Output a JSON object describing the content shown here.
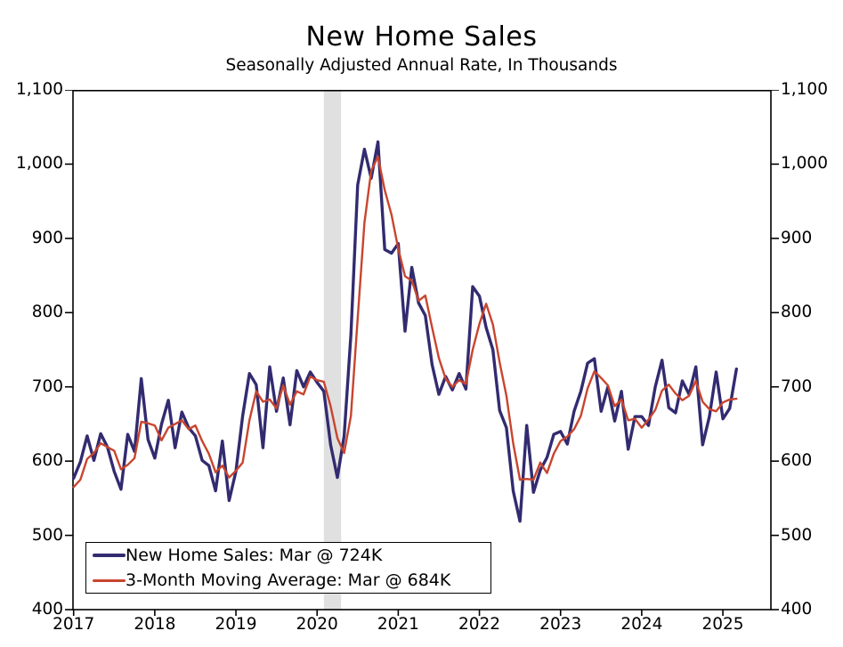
{
  "title": "New Home Sales",
  "subtitle": "Seasonally Adjusted Annual Rate, In Thousands",
  "legend": [
    {
      "label": "New Home Sales: Mar @ 724K",
      "color": "#322b70"
    },
    {
      "label": "3-Month Moving Average: Mar @ 684K",
      "color": "#c8452e"
    }
  ],
  "chart_data": {
    "type": "line",
    "title": "New Home Sales",
    "subtitle": "Seasonally Adjusted Annual Rate, In Thousands",
    "xlabel": "",
    "ylabel": "",
    "x_start_month": "2017-01",
    "x_end_month": "2025-03",
    "ylim": [
      400,
      1100
    ],
    "grid": false,
    "legend_position": "bottom-left",
    "background_color": "#ffffff",
    "frame_color": "#000000",
    "y_ticks": [
      {
        "value": 400,
        "label": "400"
      },
      {
        "value": 500,
        "label": "500"
      },
      {
        "value": 600,
        "label": "600"
      },
      {
        "value": 700,
        "label": "700"
      },
      {
        "value": 800,
        "label": "800"
      },
      {
        "value": 900,
        "label": "900"
      },
      {
        "value": 1000,
        "label": "1,000"
      },
      {
        "value": 1100,
        "label": "1,100"
      }
    ],
    "x_ticks": [
      {
        "label": "2017",
        "month_index": 0
      },
      {
        "label": "2018",
        "month_index": 12
      },
      {
        "label": "2019",
        "month_index": 24
      },
      {
        "label": "2020",
        "month_index": 36
      },
      {
        "label": "2021",
        "month_index": 48
      },
      {
        "label": "2022",
        "month_index": 60
      },
      {
        "label": "2023",
        "month_index": 72
      },
      {
        "label": "2024",
        "month_index": 84
      },
      {
        "label": "2025",
        "month_index": 96
      }
    ],
    "recession_band": {
      "start": "2020-02",
      "end": "2020-04",
      "color": "#e0e0e0"
    },
    "series": [
      {
        "name": "New Home Sales",
        "latest_label": "Mar @ 724K",
        "color": "#322b70",
        "line_width": 3.4,
        "values": [
          577,
          599,
          634,
          601,
          637,
          619,
          586,
          562,
          636,
          613,
          711,
          629,
          604,
          650,
          682,
          618,
          666,
          645,
          634,
          601,
          594,
          560,
          627,
          547,
          586,
          661,
          718,
          703,
          618,
          727,
          667,
          712,
          649,
          722,
          700,
          720,
          706,
          694,
          622,
          578,
          634,
          770,
          972,
          1020,
          981,
          1030,
          885,
          880,
          893,
          775,
          861,
          813,
          796,
          730,
          690,
          714,
          696,
          718,
          697,
          835,
          822,
          780,
          750,
          668,
          645,
          560,
          519,
          648,
          558,
          588,
          605,
          636,
          640,
          623,
          667,
          694,
          732,
          738,
          667,
          700,
          654,
          694,
          616,
          660,
          660,
          648,
          700,
          736,
          672,
          665,
          708,
          690,
          727,
          622,
          660,
          720,
          657,
          671,
          724
        ]
      },
      {
        "name": "3-Month Moving Average",
        "latest_label": "Mar @ 684K",
        "color": "#c8452e",
        "line_width": 2.4,
        "values": [
          565,
          575,
          603,
          611,
          624,
          619,
          614,
          589,
          595,
          604,
          653,
          651,
          648,
          628,
          645,
          650,
          655,
          643,
          648,
          627,
          610,
          585,
          594,
          578,
          587,
          598,
          655,
          694,
          680,
          683,
          671,
          702,
          676,
          694,
          690,
          714,
          709,
          707,
          674,
          631,
          611,
          661,
          792,
          921,
          991,
          1010,
          965,
          932,
          886,
          849,
          843,
          816,
          823,
          780,
          739,
          711,
          700,
          709,
          704,
          750,
          785,
          812,
          784,
          733,
          688,
          624,
          575,
          576,
          575,
          598,
          584,
          610,
          627,
          633,
          643,
          661,
          698,
          721,
          712,
          702,
          674,
          683,
          655,
          657,
          645,
          656,
          669,
          695,
          703,
          691,
          682,
          688,
          708,
          680,
          670,
          667,
          679,
          683,
          684
        ]
      }
    ]
  }
}
